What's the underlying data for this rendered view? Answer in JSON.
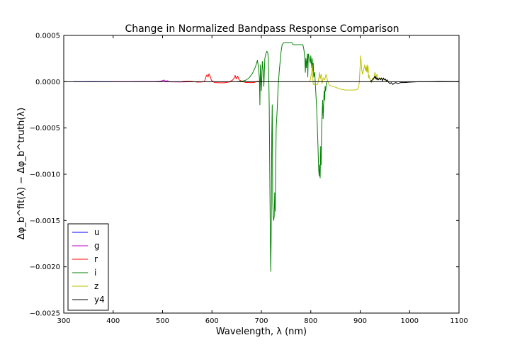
{
  "chart_data": {
    "type": "line",
    "title": "Change in Normalized Bandpass Response Comparison",
    "xlabel": "Wavelength, λ (nm)",
    "ylabel": "Δφ_b^fit(λ) − Δφ_b^truth(λ)",
    "xlim": [
      300,
      1100
    ],
    "ylim": [
      -0.0025,
      0.0005
    ],
    "x_ticks": [
      300,
      400,
      500,
      600,
      700,
      800,
      900,
      1000,
      1100
    ],
    "x_tick_labels": [
      "300",
      "400",
      "500",
      "600",
      "700",
      "800",
      "900",
      "1000",
      "1100"
    ],
    "y_ticks": [
      0.0005,
      0.0,
      -0.0005,
      -0.001,
      -0.0015,
      -0.002,
      -0.0025
    ],
    "y_tick_labels": [
      "0.0005",
      "0.0000",
      "−0.0005",
      "−0.0010",
      "−0.0015",
      "−0.0020",
      "−0.0025"
    ],
    "grid": false,
    "legend_position": "lower-left",
    "series": [
      {
        "name": "u",
        "color": "#0000ff",
        "points": [
          [
            320,
            0
          ],
          [
            340,
            0
          ],
          [
            360,
            1e-06
          ],
          [
            380,
            0
          ],
          [
            400,
            0
          ]
        ]
      },
      {
        "name": "g",
        "color": "#bf00bf",
        "points": [
          [
            400,
            0
          ],
          [
            430,
            0
          ],
          [
            460,
            2e-06
          ],
          [
            480,
            1e-06
          ],
          [
            495,
            4e-06
          ],
          [
            500,
            1.2e-05
          ],
          [
            503,
            1.8e-05
          ],
          [
            506,
            6e-06
          ],
          [
            510,
            1e-05
          ],
          [
            515,
            -2e-06
          ],
          [
            520,
            -2e-06
          ],
          [
            535,
            -3e-06
          ],
          [
            545,
            -2e-06
          ],
          [
            555,
            0
          ]
        ]
      },
      {
        "name": "r",
        "color": "#ff0000",
        "points": [
          [
            540,
            3e-06
          ],
          [
            550,
            4e-06
          ],
          [
            560,
            4e-06
          ],
          [
            570,
            -5e-06
          ],
          [
            580,
            -3e-06
          ],
          [
            585,
            4e-06
          ],
          [
            588,
            5.5e-05
          ],
          [
            590,
            7.5e-05
          ],
          [
            592,
            5e-05
          ],
          [
            594,
            8.5e-05
          ],
          [
            596,
            6e-05
          ],
          [
            599,
            1.5e-05
          ],
          [
            605,
            -1e-05
          ],
          [
            615,
            -1.2e-05
          ],
          [
            625,
            -1.2e-05
          ],
          [
            635,
            -3e-06
          ],
          [
            642,
            1.8e-05
          ],
          [
            645,
            4e-05
          ],
          [
            647,
            6.8e-05
          ],
          [
            649,
            3e-05
          ],
          [
            652,
            6e-05
          ],
          [
            655,
            2e-05
          ],
          [
            660,
            5e-06
          ],
          [
            668,
            -8e-06
          ],
          [
            675,
            -1e-05
          ],
          [
            685,
            -1e-05
          ],
          [
            692,
            5e-06
          ],
          [
            697,
            0
          ]
        ]
      },
      {
        "name": "i",
        "color": "#008000",
        "points": [
          [
            650,
            0
          ],
          [
            660,
            5e-06
          ],
          [
            668,
            1.5e-05
          ],
          [
            675,
            4e-05
          ],
          [
            682,
            9e-05
          ],
          [
            688,
            0.00016
          ],
          [
            692,
            0.00023
          ],
          [
            694,
            0.00016
          ],
          [
            696,
            4e-05
          ],
          [
            697,
            -0.00025
          ],
          [
            698,
            0.00018
          ],
          [
            700,
            -0.0001
          ],
          [
            702,
            0.00022
          ],
          [
            704,
            0.0001
          ],
          [
            705,
            -5e-05
          ],
          [
            707,
            0.00025
          ],
          [
            709,
            0.0003
          ],
          [
            711,
            0.00033
          ],
          [
            713,
            0.00031
          ],
          [
            714,
            0.00025
          ],
          [
            715,
            5e-05
          ],
          [
            716,
            -0.0003
          ],
          [
            717,
            -0.001
          ],
          [
            718,
            -0.0016
          ],
          [
            719,
            -0.00205
          ],
          [
            720,
            -0.0016
          ],
          [
            721,
            -0.0006
          ],
          [
            722,
            -0.00025
          ],
          [
            723,
            -0.0013
          ],
          [
            724,
            -0.00145
          ],
          [
            725,
            -0.0015
          ],
          [
            726,
            -0.00145
          ],
          [
            727,
            -0.0012
          ],
          [
            728,
            -0.0014
          ],
          [
            729,
            -0.0009
          ],
          [
            730,
            -0.0005
          ],
          [
            732,
            -0.0003
          ],
          [
            734,
            -5e-05
          ],
          [
            736,
            0.0001
          ],
          [
            738,
            0.00022
          ],
          [
            740,
            0.00033
          ],
          [
            742,
            0.0004
          ],
          [
            745,
            0.00042
          ],
          [
            752,
            0.00042
          ],
          [
            758,
            0.00042
          ],
          [
            762,
            0.00042
          ],
          [
            764,
            0.0004
          ],
          [
            768,
            0.0004
          ],
          [
            776,
            0.0004
          ],
          [
            784,
            0.0004
          ],
          [
            786,
            0.00035
          ],
          [
            788,
            0.00025
          ],
          [
            789,
            0.0001
          ],
          [
            790,
            0.00025
          ],
          [
            791,
            0.00015
          ],
          [
            793,
            0.0003
          ],
          [
            794,
            5e-05
          ],
          [
            795,
            0.0003
          ],
          [
            797,
            0.00025
          ],
          [
            799,
            0.0002
          ],
          [
            800,
            0.00028
          ],
          [
            802,
            0.00015
          ],
          [
            803,
            0.00025
          ],
          [
            804,
            0.00012
          ],
          [
            805,
            0.0002
          ],
          [
            806,
            5e-05
          ],
          [
            808,
            0.0001
          ],
          [
            810,
            -0.0001
          ],
          [
            812,
            -0.0003
          ],
          [
            814,
            -0.0006
          ],
          [
            816,
            -0.00095
          ],
          [
            817,
            -0.00102
          ],
          [
            818,
            -0.0009
          ],
          [
            819,
            -0.00104
          ],
          [
            820,
            -0.0007
          ],
          [
            821,
            -0.0009
          ],
          [
            822,
            -0.0005
          ],
          [
            824,
            -0.0002
          ],
          [
            825,
            -0.0004
          ],
          [
            826,
            -0.00025
          ],
          [
            827,
            -0.0001
          ],
          [
            828,
            -0.0002
          ],
          [
            829,
            -5e-05
          ],
          [
            830,
            -0.0001
          ],
          [
            832,
            0
          ]
        ]
      },
      {
        "name": "z",
        "color": "#bfbf00",
        "points": [
          [
            798,
            0
          ],
          [
            802,
            0.0001
          ],
          [
            803,
            0.00018
          ],
          [
            804,
            5e-05
          ],
          [
            805,
            -3e-05
          ],
          [
            810,
            -3e-05
          ],
          [
            814,
            -3e-05
          ],
          [
            818,
            0.0001
          ],
          [
            819,
            3e-05
          ],
          [
            821,
            8e-05
          ],
          [
            823,
            -2e-05
          ],
          [
            825,
            4e-05
          ],
          [
            828,
            2e-05
          ],
          [
            831,
            8e-05
          ],
          [
            834,
            1e-05
          ],
          [
            838,
            -4e-05
          ],
          [
            850,
            -6e-05
          ],
          [
            860,
            -8e-05
          ],
          [
            870,
            -9e-05
          ],
          [
            880,
            -9e-05
          ],
          [
            890,
            -9e-05
          ],
          [
            895,
            -8e-05
          ],
          [
            898,
            -2e-05
          ],
          [
            900,
            0.00018
          ],
          [
            901,
            0.00028
          ],
          [
            902,
            0.00022
          ],
          [
            903,
            0.00013
          ],
          [
            905,
            8e-05
          ],
          [
            907,
            0.00013
          ],
          [
            909,
            0.00018
          ],
          [
            911,
            0.00012
          ],
          [
            912,
            0.00016
          ],
          [
            913,
            0.00011
          ],
          [
            914,
            0.00018
          ],
          [
            915,
            0.0001
          ],
          [
            916,
            0.00017
          ],
          [
            917,
            4e-05
          ],
          [
            918,
            7e-05
          ],
          [
            920,
            2e-05
          ],
          [
            923,
            -1e-05
          ],
          [
            925,
            4e-05
          ],
          [
            927,
            2e-05
          ],
          [
            929,
            8e-05
          ],
          [
            930,
            0.0001
          ],
          [
            932,
            5e-05
          ],
          [
            934,
            8e-05
          ],
          [
            936,
            3e-05
          ],
          [
            940,
            4e-05
          ],
          [
            945,
            3e-05
          ],
          [
            950,
            2e-05
          ],
          [
            955,
            0
          ]
        ]
      },
      {
        "name": "y4",
        "color": "#000000",
        "points": [
          [
            920,
            0
          ],
          [
            925,
            2e-05
          ],
          [
            928,
            4e-05
          ],
          [
            930,
            6e-05
          ],
          [
            931,
            3e-05
          ],
          [
            932,
            5e-05
          ],
          [
            934,
            2e-05
          ],
          [
            935,
            4e-05
          ],
          [
            937,
            2e-05
          ],
          [
            939,
            4e-05
          ],
          [
            941,
            2e-05
          ],
          [
            943,
            4e-05
          ],
          [
            945,
            1e-05
          ],
          [
            947,
            4e-05
          ],
          [
            949,
            2e-05
          ],
          [
            951,
            3e-05
          ],
          [
            953,
            1e-05
          ],
          [
            955,
            2e-05
          ],
          [
            958,
            -1e-05
          ],
          [
            960,
            -2e-05
          ],
          [
            963,
            -1e-05
          ],
          [
            966,
            -3e-05
          ],
          [
            968,
            -2e-05
          ],
          [
            972,
            -1e-05
          ],
          [
            976,
            -2e-05
          ],
          [
            982,
            -1e-05
          ],
          [
            990,
            -1e-05
          ],
          [
            1000,
            -5e-06
          ],
          [
            1020,
            0
          ],
          [
            1040,
            0
          ],
          [
            1060,
            3e-06
          ],
          [
            1080,
            2e-06
          ],
          [
            1100,
            0
          ]
        ]
      }
    ],
    "reference_line": {
      "y": 0,
      "color": "#000000"
    }
  }
}
